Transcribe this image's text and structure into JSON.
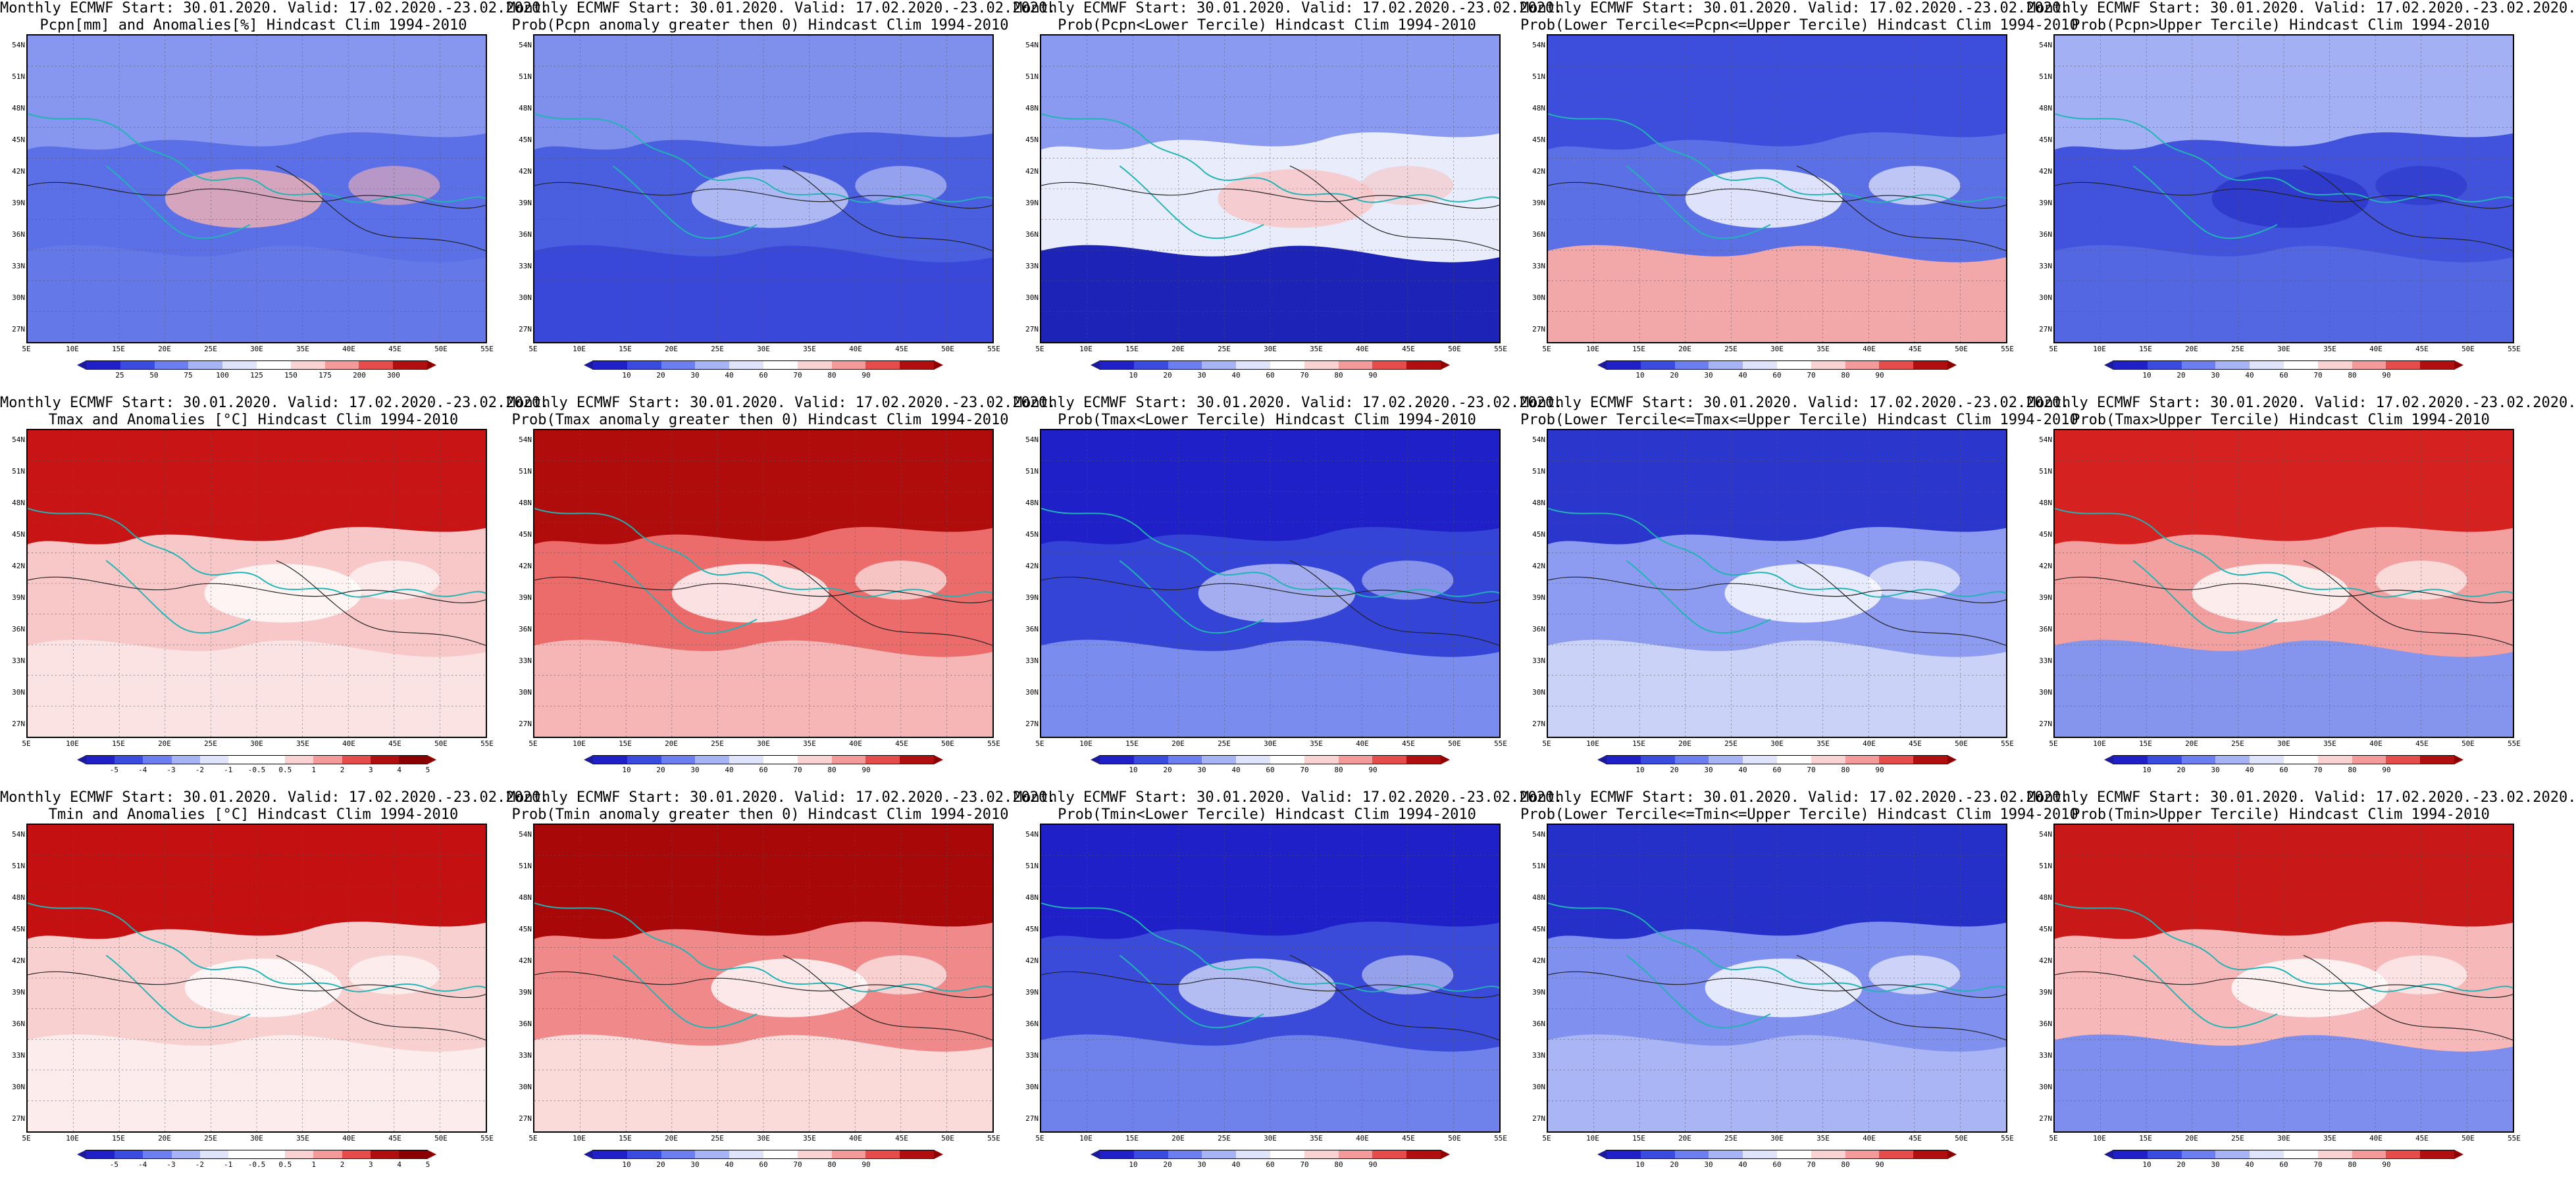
{
  "lat_labels": [
    "54N",
    "51N",
    "48N",
    "45N",
    "42N",
    "39N",
    "36N",
    "33N",
    "30N",
    "27N"
  ],
  "lon_labels": [
    "5E",
    "10E",
    "15E",
    "20E",
    "25E",
    "30E",
    "35E",
    "40E",
    "45E",
    "50E",
    "55E"
  ],
  "scales": {
    "prob": {
      "ticks": [
        "10",
        "20",
        "30",
        "40",
        "60",
        "70",
        "80",
        "90"
      ],
      "colors": [
        "#1f20c8",
        "#3a4be0",
        "#6c7ff0",
        "#a6b3f5",
        "#dfe4fb",
        "#ffffff",
        "#fbd2d2",
        "#f49a9a",
        "#e74c4c",
        "#b10f0f"
      ]
    },
    "pcpn": {
      "ticks": [
        "25",
        "50",
        "75",
        "100",
        "125",
        "150",
        "175",
        "200",
        "300"
      ],
      "colors": [
        "#1f20c8",
        "#3a4be0",
        "#6c7ff0",
        "#a6b3f5",
        "#dfe4fb",
        "#ffffff",
        "#fbd2d2",
        "#f49a9a",
        "#e74c4c",
        "#b10f0f"
      ]
    },
    "temp": {
      "ticks": [
        "-5",
        "-4",
        "-3",
        "-2",
        "-1",
        "-0.5",
        "0.5",
        "1",
        "2",
        "3",
        "4",
        "5"
      ],
      "colors": [
        "#1f20c8",
        "#3a4be0",
        "#6c7ff0",
        "#a6b3f5",
        "#dfe4fb",
        "#ffffff",
        "#ffffff",
        "#fbd2d2",
        "#f49a9a",
        "#e74c4c",
        "#b10f0f",
        "#8a0000"
      ]
    }
  },
  "panels": [
    {
      "row": 0,
      "col": 0,
      "line1": "Monthly ECMWF Start: 30.01.2020. Valid: 17.02.2020.-23.02.2020.",
      "line2": "Pcpn[mm] and Anomalies[%] Hindcast Clim 1994-2010",
      "scale": "pcpn",
      "bg": "#5b6fe6",
      "north": "#8796ee",
      "south": "#6478e8",
      "blob": "#f3b3b3"
    },
    {
      "row": 0,
      "col": 1,
      "line1": "Monthly ECMWF Start: 30.01.2020. Valid: 17.02.2020.-23.02.2020.",
      "line2": "Prob(Pcpn anomaly greater then 0) Hindcast Clim 1994-2010",
      "scale": "prob",
      "bg": "#4a5ee0",
      "north": "#7f8fec",
      "south": "#3948d8",
      "blob": "#c7cff7"
    },
    {
      "row": 0,
      "col": 2,
      "line1": "Monthly ECMWF Start: 30.01.2020. Valid: 17.02.2020.-23.02.2020.",
      "line2": "Prob(Pcpn<Lower Tercile) Hindcast Clim 1994-2010",
      "scale": "prob",
      "bg": "#e9ecfb",
      "north": "#8a9af0",
      "south": "#1e23b8",
      "blob": "#f7c4c4"
    },
    {
      "row": 0,
      "col": 3,
      "line1": "Monthly ECMWF Start: 30.01.2020. Valid: 17.02.2020.-23.02.2020.",
      "line2": "Prob(Lower Tercile<=Pcpn<=Upper Tercile) Hindcast Clim 1994-2010",
      "scale": "prob",
      "bg": "#5c70e6",
      "north": "#3d4edc",
      "south": "#f2a8a8",
      "blob": "#ffffff"
    },
    {
      "row": 0,
      "col": 4,
      "line1": "Monthly ECMWF Start: 30.01.2020. Valid: 17.02.2020.-23.02.2020.",
      "line2": "Prob(Pcpn>Upper Tercile) Hindcast Clim 1994-2010",
      "scale": "prob",
      "bg": "#4153dc",
      "north": "#a3b0f4",
      "south": "#5367e2",
      "blob": "#2a36c8"
    },
    {
      "row": 1,
      "col": 0,
      "line1": "Monthly ECMWF Start: 30.01.2020. Valid: 17.02.2020.-23.02.2020.",
      "line2": "Tmax and Anomalies [°C] Hindcast Clim 1994-2010",
      "scale": "temp",
      "bg": "#f8c8c8",
      "north": "#c81414",
      "south": "#fbe3e3",
      "blob": "#ffffff"
    },
    {
      "row": 1,
      "col": 1,
      "line1": "Monthly ECMWF Start: 30.01.2020. Valid: 17.02.2020.-23.02.2020.",
      "line2": "Prob(Tmax anomaly greater then 0) Hindcast Clim 1994-2010",
      "scale": "prob",
      "bg": "#ec6b6b",
      "north": "#b00c0c",
      "south": "#f6b6b6",
      "blob": "#ffffff"
    },
    {
      "row": 1,
      "col": 2,
      "line1": "Monthly ECMWF Start: 30.01.2020. Valid: 17.02.2020.-23.02.2020.",
      "line2": "Prob(Tmax<Lower Tercile) Hindcast Clim 1994-2010",
      "scale": "prob",
      "bg": "#3344d6",
      "north": "#1f20c8",
      "south": "#7a8cee",
      "blob": "#bfc8f6"
    },
    {
      "row": 1,
      "col": 3,
      "line1": "Monthly ECMWF Start: 30.01.2020. Valid: 17.02.2020.-23.02.2020.",
      "line2": "Prob(Lower Tercile<=Tmax<=Upper Tercile) Hindcast Clim 1994-2010",
      "scale": "prob",
      "bg": "#8d9cf0",
      "north": "#2b37cc",
      "south": "#cbd2f7",
      "blob": "#ffffff"
    },
    {
      "row": 1,
      "col": 4,
      "line1": "Monthly ECMWF Start: 30.01.2020. Valid: 17.02.2020.-23.02.2020.",
      "line2": "Prob(Tmax>Upper Tercile) Hindcast Clim 1994-2010",
      "scale": "prob",
      "bg": "#f3a0a0",
      "north": "#d62121",
      "south": "#8595ee",
      "blob": "#ffffff"
    },
    {
      "row": 2,
      "col": 0,
      "line1": "Monthly ECMWF Start: 30.01.2020. Valid: 17.02.2020.-23.02.2020.",
      "line2": "Tmin and Anomalies [°C] Hindcast Clim 1994-2010",
      "scale": "temp",
      "bg": "#f8d0d0",
      "north": "#c41010",
      "south": "#fdecec",
      "blob": "#ffffff"
    },
    {
      "row": 2,
      "col": 1,
      "line1": "Monthly ECMWF Start: 30.01.2020. Valid: 17.02.2020.-23.02.2020.",
      "line2": "Prob(Tmin anomaly greater then 0) Hindcast Clim 1994-2010",
      "scale": "prob",
      "bg": "#f08a8a",
      "north": "#a80808",
      "south": "#fbdada",
      "blob": "#ffffff"
    },
    {
      "row": 2,
      "col": 2,
      "line1": "Monthly ECMWF Start: 30.01.2020. Valid: 17.02.2020.-23.02.2020.",
      "line2": "Prob(Tmin<Lower Tercile) Hindcast Clim 1994-2010",
      "scale": "prob",
      "bg": "#3a4bda",
      "north": "#1f20c8",
      "south": "#6f82ec",
      "blob": "#d3daf8"
    },
    {
      "row": 2,
      "col": 3,
      "line1": "Monthly ECMWF Start: 30.01.2020. Valid: 17.02.2020.-23.02.2020.",
      "line2": "Prob(Lower Tercile<=Tmin<=Upper Tercile) Hindcast Clim 1994-2010",
      "scale": "prob",
      "bg": "#7f90ee",
      "north": "#2530c8",
      "south": "#a9b5f4",
      "blob": "#ffffff"
    },
    {
      "row": 2,
      "col": 4,
      "line1": "Monthly ECMWF Start: 30.01.2020. Valid: 17.02.2020.-23.02.2020.",
      "line2": "Prob(Tmin>Upper Tercile) Hindcast Clim 1994-2010",
      "scale": "prob",
      "bg": "#f6b8b8",
      "north": "#c81818",
      "south": "#7d8eee",
      "blob": "#ffffff"
    }
  ]
}
